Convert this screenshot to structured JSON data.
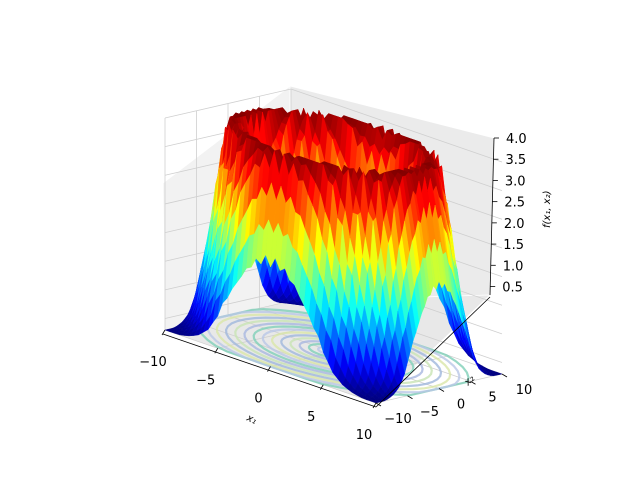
{
  "chart_data": {
    "type": "surface3d",
    "title": "",
    "xlabel": "x₁",
    "ylabel": "x₂",
    "zlabel": "f(x₁, x₂)",
    "xlim": [
      -10,
      10
    ],
    "ylim": [
      -10,
      10
    ],
    "zlim": [
      0.3,
      4.0
    ],
    "x_ticks": [
      -10,
      -5,
      0,
      5,
      10
    ],
    "y_ticks": [
      -10,
      -5,
      0,
      5,
      10
    ],
    "z_ticks": [
      0.5,
      1.0,
      1.5,
      2.0,
      2.5,
      3.0,
      3.5,
      4.0
    ],
    "x_tick_labels": [
      "−10",
      "−5",
      "0",
      "5",
      "10"
    ],
    "y_tick_labels": [
      "−10",
      "−5",
      "0",
      "5",
      "10"
    ],
    "z_tick_labels": [
      "0.5",
      "1.0",
      "1.5",
      "2.0",
      "2.5",
      "3.0",
      "3.5",
      "4.0"
    ],
    "colormap": "jet",
    "grid": true,
    "contour_projection": "bottom",
    "surface": {
      "description_of_shape": "ring-shaped ridge peaking near radius ≈ 8 with oscillating ripples; low values near the center and the corners",
      "peak_radius": 8,
      "z_center": 2.0,
      "z_ring_max": 4.0,
      "z_corner": 0.3
    }
  }
}
